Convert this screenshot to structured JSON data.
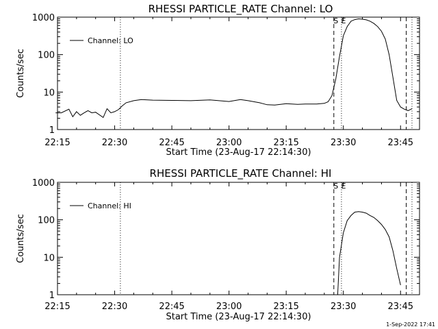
{
  "footer": {
    "timestamp": "1-Sep-2022 17:41"
  },
  "chart_data": [
    {
      "type": "line",
      "title": "RHESSI PARTICLE_RATE Channel: LO",
      "xlabel": "Start Time (23-Aug-17 22:14:30)",
      "ylabel": "Counts/sec",
      "yscale": "log",
      "ylim": [
        1,
        1000
      ],
      "xlim_minutes": [
        22.25,
        23.833
      ],
      "x_tick_labels": [
        "22:15",
        "22:30",
        "22:45",
        "23:00",
        "23:15",
        "23:30",
        "23:45"
      ],
      "y_tick_labels": [
        "1",
        "10",
        "100",
        "1000"
      ],
      "legend": {
        "label": "Channel: LO",
        "position": "top-left"
      },
      "vertical_markers": [
        {
          "time": "22:31.5",
          "style": "dotted",
          "label": ""
        },
        {
          "time": "23:27.5",
          "style": "dashed",
          "label": "S"
        },
        {
          "time": "23:29.5",
          "style": "dotted",
          "label": "E"
        },
        {
          "time": "23:46.5",
          "style": "dashed",
          "label": ""
        },
        {
          "time": "23:48.0",
          "style": "dotted",
          "label": ""
        }
      ],
      "series": [
        {
          "name": "Channel: LO",
          "x": [
            "22:14.5",
            "22:16",
            "22:18",
            "22:19",
            "22:20",
            "22:21",
            "22:22",
            "22:23",
            "22:24",
            "22:25",
            "22:27",
            "22:28",
            "22:29",
            "22:30",
            "22:31",
            "22:32",
            "22:33",
            "22:35",
            "22:37",
            "22:40",
            "22:45",
            "22:50",
            "22:55",
            "23:00",
            "23:03",
            "23:05",
            "23:08",
            "23:10",
            "23:12",
            "23:15",
            "23:18",
            "23:20",
            "23:23",
            "23:25",
            "23:26",
            "23:27",
            "23:28",
            "23:29",
            "23:30",
            "23:31",
            "23:32",
            "23:33",
            "23:34",
            "23:35",
            "23:36",
            "23:37",
            "23:38",
            "23:39",
            "23:40",
            "23:41",
            "23:42",
            "23:43",
            "23:44",
            "23:45",
            "23:46",
            "23:47",
            "23:48"
          ],
          "y": [
            2.8,
            2.8,
            3.5,
            2.2,
            3.0,
            2.4,
            2.8,
            3.2,
            2.8,
            2.9,
            2.1,
            3.6,
            2.8,
            3.0,
            3.4,
            4.3,
            5.2,
            5.9,
            6.3,
            6.1,
            6.0,
            5.9,
            6.2,
            5.6,
            6.3,
            5.9,
            5.2,
            4.6,
            4.5,
            4.9,
            4.7,
            4.8,
            4.8,
            5.0,
            5.5,
            8.0,
            22,
            90,
            320,
            560,
            780,
            860,
            900,
            880,
            850,
            780,
            680,
            560,
            420,
            260,
            100,
            25,
            6,
            4,
            3.5,
            3.2,
            3.6
          ]
        }
      ]
    },
    {
      "type": "line",
      "title": "RHESSI PARTICLE_RATE Channel: HI",
      "xlabel": "Start Time (23-Aug-17 22:14:30)",
      "ylabel": "Counts/sec",
      "yscale": "log",
      "ylim": [
        1,
        1000
      ],
      "xlim_minutes": [
        22.25,
        23.833
      ],
      "x_tick_labels": [
        "22:15",
        "22:30",
        "22:45",
        "23:00",
        "23:15",
        "23:30",
        "23:45"
      ],
      "y_tick_labels": [
        "1",
        "10",
        "100",
        "1000"
      ],
      "legend": {
        "label": "Channel: HI",
        "position": "top-left"
      },
      "vertical_markers": [
        {
          "time": "22:31.5",
          "style": "dotted",
          "label": ""
        },
        {
          "time": "23:27.5",
          "style": "dashed",
          "label": "S"
        },
        {
          "time": "23:29.5",
          "style": "dotted",
          "label": "E"
        },
        {
          "time": "23:46.5",
          "style": "dashed",
          "label": ""
        },
        {
          "time": "23:48.0",
          "style": "dotted",
          "label": ""
        }
      ],
      "series": [
        {
          "name": "Channel: HI",
          "x": [
            "23:28.5",
            "23:29",
            "23:30",
            "23:31",
            "23:32",
            "23:33",
            "23:34",
            "23:35",
            "23:36",
            "23:37",
            "23:38",
            "23:39",
            "23:40",
            "23:41",
            "23:42",
            "23:43",
            "23:44",
            "23:45"
          ],
          "y": [
            1,
            10,
            45,
            95,
            130,
            160,
            165,
            160,
            150,
            130,
            115,
            95,
            75,
            55,
            35,
            15,
            5,
            1.8
          ]
        }
      ]
    }
  ]
}
